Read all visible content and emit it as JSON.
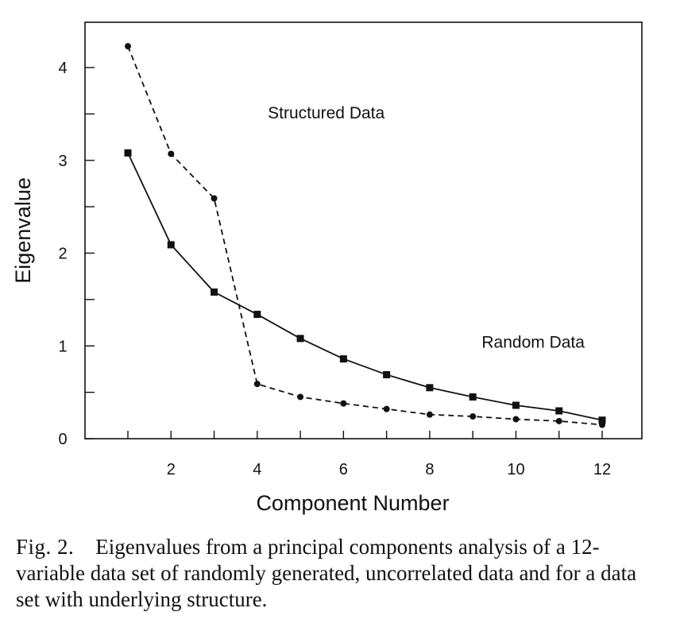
{
  "chart_data": {
    "type": "line",
    "xlabel": "Component Number",
    "ylabel": "Eigenvalue",
    "xlim": [
      0,
      13
    ],
    "ylim": [
      0,
      4.5
    ],
    "x_ticks": [
      2,
      4,
      6,
      8,
      10,
      12
    ],
    "x_tick_labels": [
      "2",
      "4",
      "6",
      "8",
      "10",
      "12"
    ],
    "x_minor_ticks": [
      1,
      3,
      5,
      7,
      9,
      11
    ],
    "y_ticks": [
      0,
      1,
      2,
      3,
      4
    ],
    "y_tick_labels": [
      "0",
      "1",
      "2",
      "3",
      "4"
    ],
    "y_minor_ticks": [
      0.5,
      1.5,
      2.5,
      3.5
    ],
    "grid": false,
    "x": [
      1,
      2,
      3,
      4,
      5,
      6,
      7,
      8,
      9,
      10,
      11,
      12
    ],
    "series": [
      {
        "name": "Structured Data",
        "values": [
          4.23,
          3.07,
          2.59,
          0.59,
          0.45,
          0.38,
          0.32,
          0.26,
          0.24,
          0.21,
          0.19,
          0.15
        ],
        "line_style": "dashed",
        "marker": "circle",
        "label_at": [
          5.6,
          3.45
        ]
      },
      {
        "name": "Random Data",
        "values": [
          3.08,
          2.09,
          1.58,
          1.34,
          1.08,
          0.86,
          0.69,
          0.55,
          0.45,
          0.36,
          0.3,
          0.2
        ],
        "line_style": "solid",
        "marker": "square",
        "label_at": [
          10.4,
          0.98
        ]
      }
    ],
    "colors": {
      "line": "#111111",
      "axis": "#111111"
    }
  },
  "caption": {
    "label": "Fig. 2.",
    "text": "Eigenvalues from a principal components analysis of a 12-variable data set of randomly generated, uncorrelated data and for a data set with underlying structure."
  }
}
